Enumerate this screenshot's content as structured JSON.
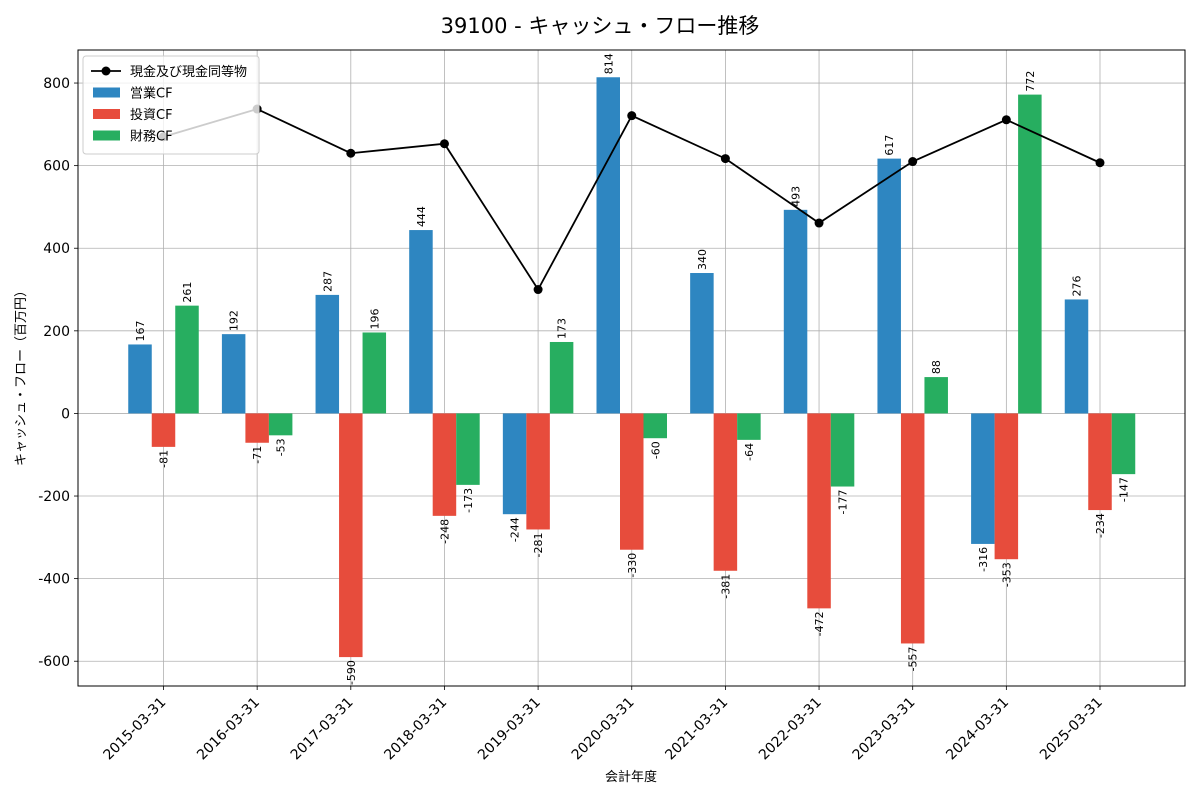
{
  "chart_data": {
    "type": "bar",
    "title": "39100 - キャッシュ・フロー推移",
    "xlabel": "会計年度",
    "ylabel": "キャッシュ・フロー（百万円）",
    "ylim": [
      -660,
      880
    ],
    "yticks": [
      -600,
      -400,
      -200,
      0,
      200,
      400,
      600,
      800
    ],
    "grid": true,
    "legend_position": "top-left",
    "categories": [
      "2015-03-31",
      "2016-03-31",
      "2017-03-31",
      "2018-03-31",
      "2019-03-31",
      "2020-03-31",
      "2021-03-31",
      "2022-03-31",
      "2023-03-31",
      "2024-03-31",
      "2025-03-31"
    ],
    "series": [
      {
        "name": "営業CF",
        "type": "bar",
        "color": "#2e86c1",
        "values": [
          167,
          192,
          287,
          444,
          -244,
          814,
          340,
          493,
          617,
          -316,
          276
        ]
      },
      {
        "name": "投資CF",
        "type": "bar",
        "color": "#e74c3c",
        "values": [
          -81,
          -71,
          -590,
          -248,
          -281,
          -330,
          -381,
          -472,
          -557,
          -353,
          -234
        ]
      },
      {
        "name": "財務CF",
        "type": "bar",
        "color": "#27ae60",
        "values": [
          261,
          -53,
          196,
          -173,
          173,
          -60,
          -64,
          -177,
          88,
          772,
          -147
        ]
      },
      {
        "name": "現金及び現金同等物",
        "type": "line",
        "color": "#000000",
        "values": [
          670,
          737,
          630,
          653,
          300,
          721,
          617,
          461,
          610,
          711,
          607
        ]
      }
    ]
  }
}
